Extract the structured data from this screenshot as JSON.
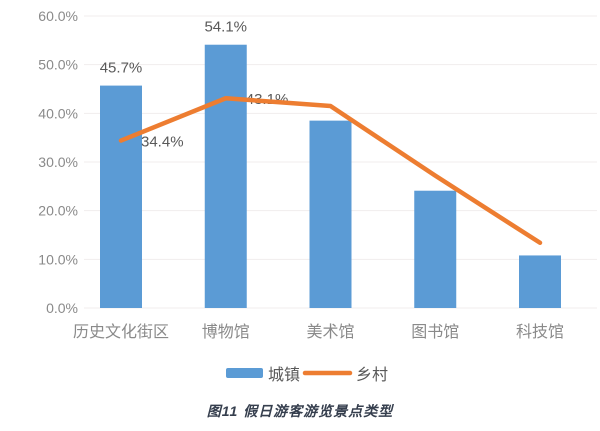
{
  "figure": {
    "caption": "图11  假日游客游览景点类型"
  },
  "colors": {
    "bar_blue": "#5B9BD5",
    "line_orange": "#ED7D31",
    "axis_text": "#8a8a8a",
    "data_label_text": "#595959",
    "legend_text": "#595959",
    "gridline": "#f1eded",
    "caption_text": "#363f4e",
    "background": "#ffffff"
  },
  "chart_data": {
    "type": "bar",
    "subtype": "bar-with-line-overlay",
    "title": "",
    "xlabel": "",
    "ylabel": "",
    "categories": [
      "历史文化街区",
      "博物馆",
      "美术馆",
      "图书馆",
      "科技馆"
    ],
    "series": [
      {
        "name": "城镇",
        "kind": "bar",
        "color": "#5B9BD5",
        "values": [
          45.7,
          54.1,
          38.5,
          24.1,
          10.8
        ],
        "labels": [
          "45.7%",
          "54.1%",
          "",
          "",
          ""
        ]
      },
      {
        "name": "乡村",
        "kind": "line",
        "color": "#ED7D31",
        "values": [
          34.4,
          43.1,
          41.5,
          27.2,
          13.4
        ],
        "labels": [
          "34.4%",
          "43.1%",
          "",
          "",
          ""
        ]
      }
    ],
    "ylim": [
      0,
      60
    ],
    "yticks": [
      {
        "v": 0,
        "label": "0.0%"
      },
      {
        "v": 10,
        "label": "10.0%"
      },
      {
        "v": 20,
        "label": "20.0%"
      },
      {
        "v": 30,
        "label": "30.0%"
      },
      {
        "v": 40,
        "label": "40.0%"
      },
      {
        "v": 50,
        "label": "50.0%"
      },
      {
        "v": 60,
        "label": "60.0%"
      }
    ],
    "grid": true,
    "legend_position": "bottom"
  }
}
